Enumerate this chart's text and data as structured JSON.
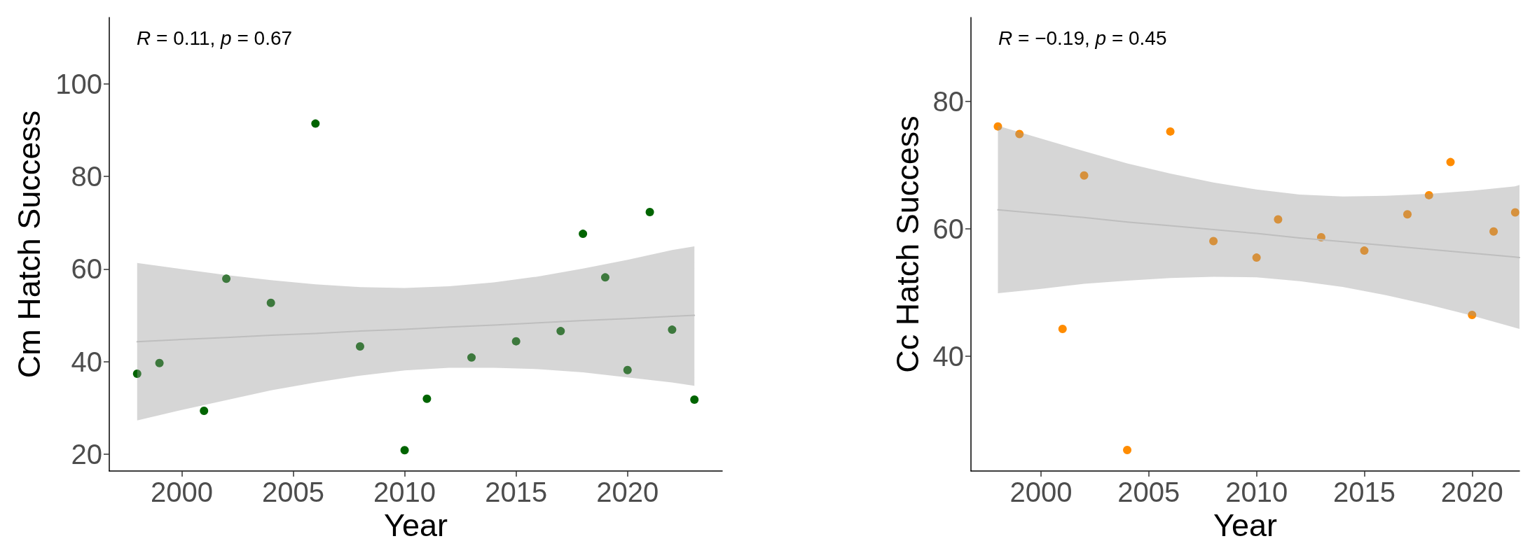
{
  "chart_data": [
    {
      "type": "scatter",
      "xlabel": "Year",
      "ylabel": "Cm Hatch Success",
      "annotations": [
        "R = 0.11, p = 0.67"
      ],
      "xlim": [
        1996.75,
        2024.25
      ],
      "xticks": [
        2000,
        2005,
        2010,
        2015,
        2020
      ],
      "ylim": [
        16.4,
        114.3
      ],
      "yticks": [
        20,
        40,
        60,
        80,
        100
      ],
      "grid": false,
      "marker": "circle",
      "series": [
        {
          "color": "#006400",
          "x": [
            1998,
            1999,
            2001,
            2002,
            2004,
            2006,
            2008,
            2010,
            2011,
            2013,
            2015,
            2017,
            2018,
            2019,
            2020,
            2021,
            2022,
            2023
          ],
          "values": [
            37.4,
            39.7,
            29.4,
            57.9,
            52.7,
            91.4,
            43.3,
            20.9,
            32.0,
            40.9,
            44.4,
            46.6,
            67.6,
            58.2,
            38.2,
            72.3,
            46.9,
            31.8
          ]
        },
        {
          "type": "line",
          "color": "#bebebe",
          "marker": "none",
          "x": [
            1998,
            2000,
            2002,
            2004,
            2006,
            2008,
            2010,
            2012,
            2014,
            2016,
            2018,
            2020,
            2022,
            2023
          ],
          "values": [
            44.3,
            44.8,
            45.2,
            45.7,
            46.1,
            46.6,
            47.0,
            47.5,
            47.9,
            48.4,
            48.9,
            49.3,
            49.8,
            50.0
          ],
          "lower": [
            27.3,
            29.6,
            31.7,
            33.8,
            35.5,
            37.0,
            38.1,
            38.7,
            38.7,
            38.4,
            37.7,
            36.6,
            35.5,
            34.8
          ],
          "upper": [
            61.3,
            60.0,
            58.7,
            57.6,
            56.7,
            56.1,
            55.9,
            56.3,
            57.1,
            58.4,
            60.1,
            62.0,
            64.1,
            64.9
          ]
        }
      ]
    },
    {
      "type": "scatter",
      "xlabel": "Year",
      "ylabel": "Cc Hatch Success",
      "annotations": [
        "R = −0.19, p = 0.45"
      ],
      "xlim": [
        1996.75,
        2022.2
      ],
      "xticks": [
        2000,
        2005,
        2010,
        2015,
        2020
      ],
      "ylim": [
        22.0,
        93.2
      ],
      "yticks": [
        40,
        60,
        80
      ],
      "grid": false,
      "marker": "circle",
      "series": [
        {
          "color": "#ff8c00",
          "x": [
            1998,
            1999,
            2001,
            2002,
            2004,
            2006,
            2008,
            2010,
            2011,
            2013,
            2015,
            2017,
            2018,
            2019,
            2020,
            2021,
            2022
          ],
          "values": [
            76.1,
            74.9,
            44.3,
            68.4,
            25.3,
            75.3,
            58.1,
            55.5,
            61.5,
            58.7,
            56.6,
            62.3,
            65.3,
            70.5,
            46.5,
            59.6,
            62.6
          ]
        },
        {
          "type": "line",
          "color": "#bebebe",
          "marker": "none",
          "x": [
            1998,
            2000,
            2002,
            2004,
            2006,
            2008,
            2010,
            2012,
            2014,
            2016,
            2018,
            2020,
            2022,
            2022.2
          ],
          "values": [
            63.0,
            62.4,
            61.8,
            61.1,
            60.5,
            59.9,
            59.3,
            58.6,
            58.0,
            57.4,
            56.8,
            56.2,
            55.6,
            55.5
          ],
          "lower": [
            49.9,
            50.6,
            51.4,
            51.9,
            52.3,
            52.5,
            52.4,
            51.8,
            50.9,
            49.6,
            48.1,
            46.4,
            44.5,
            44.3
          ],
          "upper": [
            76.2,
            74.2,
            72.2,
            70.3,
            68.7,
            67.3,
            66.2,
            65.4,
            65.1,
            65.2,
            65.5,
            66.0,
            66.7,
            66.9
          ]
        }
      ]
    }
  ]
}
